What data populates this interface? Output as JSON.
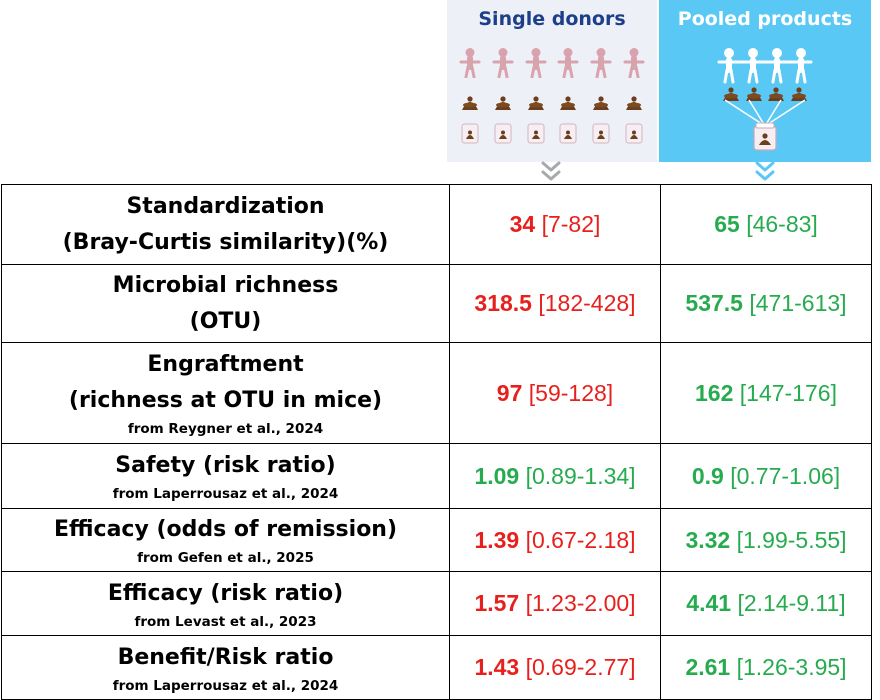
{
  "header": {
    "single_donors_title": "Single donors",
    "pooled_products_title": "Pooled products"
  },
  "colors": {
    "red": "#e8201d",
    "green": "#27ab4f",
    "single_title": "#1d3f8a",
    "pooled_panel": "#5ac8f5",
    "single_panel": "#eef0f8",
    "donor_figure": "#d9a3ae",
    "stool": "#6b3e1c"
  },
  "icons": [
    "person-icon",
    "stool-icon",
    "jar-icon",
    "chevron-down-icon"
  ],
  "rows": [
    {
      "label_lines": [
        "Standardization",
        "(Bray-Curtis similarity)(%)"
      ],
      "source": "",
      "single": {
        "value": "34",
        "ci": "[7-82]",
        "color": "red"
      },
      "pooled": {
        "value": "65",
        "ci": "[46-83]",
        "color": "green"
      }
    },
    {
      "label_lines": [
        "Microbial richness",
        "(OTU)"
      ],
      "source": "",
      "single": {
        "value": "318.5",
        "ci": "[182-428]",
        "color": "red"
      },
      "pooled": {
        "value": "537.5",
        "ci": "[471-613]",
        "color": "green"
      }
    },
    {
      "label_lines": [
        "Engraftment",
        "(richness at OTU in mice)"
      ],
      "source": "from Reygner et al., 2024",
      "single": {
        "value": "97",
        "ci": "[59-128]",
        "color": "red"
      },
      "pooled": {
        "value": "162",
        "ci": "[147-176]",
        "color": "green"
      }
    },
    {
      "label_lines": [
        "Safety (risk ratio)"
      ],
      "source": "from Laperrousaz et al., 2024",
      "single": {
        "value": "1.09",
        "ci": "[0.89-1.34]",
        "color": "green"
      },
      "pooled": {
        "value": "0.9",
        "ci": "[0.77-1.06]",
        "color": "green"
      }
    },
    {
      "label_lines": [
        "Efficacy (odds of remission)"
      ],
      "source": "from Gefen et al., 2025",
      "single": {
        "value": "1.39",
        "ci": "[0.67-2.18]",
        "color": "red"
      },
      "pooled": {
        "value": "3.32",
        "ci": "[1.99-5.55]",
        "color": "green"
      }
    },
    {
      "label_lines": [
        "Efficacy (risk ratio)"
      ],
      "source": "from Levast et al., 2023",
      "single": {
        "value": "1.57",
        "ci": "[1.23-2.00]",
        "color": "red"
      },
      "pooled": {
        "value": "4.41",
        "ci": "[2.14-9.11]",
        "color": "green"
      }
    },
    {
      "label_lines": [
        "Benefit/Risk ratio"
      ],
      "source": "from Laperrousaz et al., 2024",
      "single": {
        "value": "1.43",
        "ci": "[0.69-2.77]",
        "color": "red"
      },
      "pooled": {
        "value": "2.61",
        "ci": "[1.26-3.95]",
        "color": "green"
      }
    }
  ]
}
